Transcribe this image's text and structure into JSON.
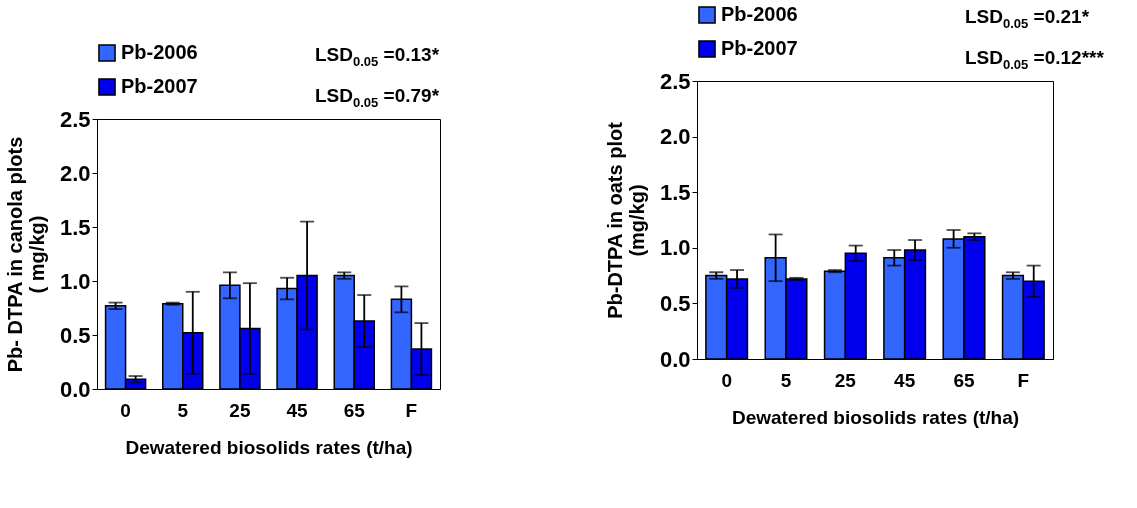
{
  "chart_data": [
    {
      "type": "bar",
      "xlabel": "Dewatered biosolids rates (t/ha)",
      "ylabel": "Pb- DTPA in canola plots\n( mg/kg)",
      "categories": [
        "0",
        "5",
        "25",
        "45",
        "65",
        "F"
      ],
      "series": [
        {
          "name": "Pb-2006",
          "color": "#3366ff",
          "values": [
            0.77,
            0.79,
            0.96,
            0.93,
            1.05,
            0.83
          ],
          "errors": [
            0.03,
            0.01,
            0.12,
            0.1,
            0.03,
            0.12
          ]
        },
        {
          "name": "Pb-2007",
          "color": "#0000ee",
          "values": [
            0.09,
            0.52,
            0.56,
            1.05,
            0.63,
            0.37
          ],
          "errors": [
            0.03,
            0.38,
            0.42,
            0.5,
            0.24,
            0.24
          ]
        }
      ],
      "ylim": [
        0,
        2.5
      ],
      "yticks": [
        {
          "value": 0,
          "label": "0.0"
        },
        {
          "value": 0.5,
          "label": "0.5"
        },
        {
          "value": 1,
          "label": "1.0"
        },
        {
          "value": 1.5,
          "label": "1.5"
        },
        {
          "value": 2,
          "label": "2.0"
        },
        {
          "value": 2.5,
          "label": "2.5"
        }
      ],
      "legend": "top",
      "annotations": [
        "LSD$_{0.05}$ =0.13*",
        "LSD$_{0.05}$ =0.79*"
      ]
    },
    {
      "type": "bar",
      "xlabel": "Dewatered biosolids rates (t/ha)",
      "ylabel": "Pb-DTPA in oats plot\n(mg/kg)",
      "categories": [
        "0",
        "5",
        "25",
        "45",
        "65",
        "F"
      ],
      "series": [
        {
          "name": "Pb-2006",
          "color": "#3366ff",
          "values": [
            0.75,
            0.91,
            0.79,
            0.91,
            1.08,
            0.75
          ],
          "errors": [
            0.03,
            0.21,
            0.01,
            0.07,
            0.08,
            0.03
          ]
        },
        {
          "name": "Pb-2007",
          "color": "#0000ee",
          "values": [
            0.72,
            0.72,
            0.95,
            0.98,
            1.1,
            0.7
          ],
          "errors": [
            0.08,
            0.01,
            0.07,
            0.09,
            0.03,
            0.14
          ]
        }
      ],
      "ylim": [
        0,
        2.5
      ],
      "yticks": [
        {
          "value": 0,
          "label": "0.0"
        },
        {
          "value": 0.5,
          "label": "0.5"
        },
        {
          "value": 1,
          "label": "1.0"
        },
        {
          "value": 1.5,
          "label": "1.5"
        },
        {
          "value": 2,
          "label": "2.0"
        },
        {
          "value": 2.5,
          "label": "2.5"
        }
      ],
      "legend": "top",
      "annotations": [
        "LSD$_{0.05}$ =0.21*",
        "LSD$_{0.05}$ =0.12***"
      ]
    }
  ]
}
